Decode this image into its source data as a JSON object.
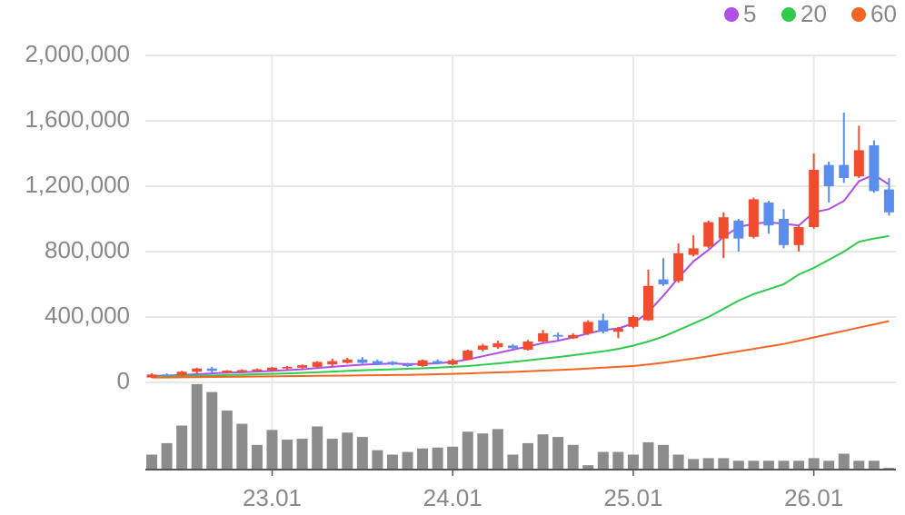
{
  "chart_data": {
    "type": "candlestick",
    "categories": [
      null,
      null,
      null,
      null,
      null,
      null,
      null,
      null,
      "23.01",
      null,
      null,
      null,
      null,
      null,
      null,
      null,
      null,
      null,
      null,
      null,
      "24.01",
      null,
      null,
      null,
      null,
      null,
      null,
      null,
      null,
      null,
      null,
      null,
      "25.01",
      null,
      null,
      null,
      null,
      null,
      null,
      null,
      null,
      null,
      null,
      null,
      "26.01",
      null,
      null,
      null,
      null,
      null
    ],
    "open": [
      30000,
      48000,
      42000,
      65000,
      85000,
      60000,
      65000,
      70000,
      75000,
      85000,
      90000,
      95000,
      110000,
      120000,
      140000,
      130000,
      125000,
      110000,
      100000,
      130000,
      110000,
      140000,
      200000,
      215000,
      225000,
      200000,
      250000,
      290000,
      270000,
      300000,
      380000,
      310000,
      340000,
      380000,
      630000,
      620000,
      780000,
      830000,
      880000,
      990000,
      890000,
      1100000,
      1000000,
      840000,
      950000,
      1330000,
      1330000,
      1260000,
      1450000,
      1180000
    ],
    "high": [
      55000,
      55000,
      70000,
      90000,
      95000,
      75000,
      80000,
      85000,
      95000,
      100000,
      110000,
      130000,
      145000,
      150000,
      155000,
      140000,
      130000,
      120000,
      140000,
      140000,
      145000,
      200000,
      235000,
      255000,
      235000,
      260000,
      320000,
      305000,
      300000,
      380000,
      420000,
      340000,
      410000,
      690000,
      760000,
      850000,
      900000,
      990000,
      1040000,
      1000000,
      1130000,
      1110000,
      1060000,
      960000,
      1400000,
      1350000,
      1650000,
      1570000,
      1480000,
      1250000
    ],
    "low": [
      28000,
      38000,
      40000,
      55000,
      60000,
      55000,
      60000,
      65000,
      70000,
      80000,
      85000,
      90000,
      100000,
      115000,
      115000,
      105000,
      105000,
      95000,
      95000,
      110000,
      105000,
      135000,
      190000,
      205000,
      200000,
      195000,
      245000,
      260000,
      265000,
      290000,
      300000,
      270000,
      330000,
      375000,
      590000,
      610000,
      770000,
      820000,
      760000,
      800000,
      880000,
      910000,
      820000,
      800000,
      940000,
      1100000,
      1220000,
      1250000,
      1160000,
      1020000
    ],
    "close": [
      48000,
      42000,
      65000,
      85000,
      70000,
      72000,
      75000,
      80000,
      90000,
      95000,
      105000,
      125000,
      130000,
      140000,
      120000,
      110000,
      110000,
      100000,
      135000,
      115000,
      135000,
      195000,
      225000,
      240000,
      210000,
      250000,
      300000,
      280000,
      290000,
      370000,
      310000,
      330000,
      400000,
      590000,
      600000,
      790000,
      820000,
      980000,
      1010000,
      880000,
      1120000,
      960000,
      840000,
      950000,
      1300000,
      1200000,
      1250000,
      1420000,
      1170000,
      1040000
    ],
    "up_color": "#f04c2f",
    "down_color": "#5b8def",
    "series": [
      {
        "name": "5",
        "color": "#b04ee8",
        "values": [
          40000,
          42000,
          45000,
          50000,
          55000,
          60000,
          62000,
          66000,
          70000,
          75000,
          80000,
          88000,
          95000,
          102000,
          108000,
          112000,
          115000,
          112000,
          113000,
          117000,
          125000,
          140000,
          160000,
          180000,
          200000,
          220000,
          240000,
          255000,
          275000,
          300000,
          320000,
          330000,
          360000,
          430000,
          530000,
          640000,
          740000,
          810000,
          890000,
          950000,
          970000,
          980000,
          970000,
          960000,
          1040000,
          1060000,
          1110000,
          1230000,
          1270000,
          1210000
        ]
      },
      {
        "name": "20",
        "color": "#2ecc4a",
        "values": [
          35000,
          36000,
          38000,
          40000,
          42000,
          45000,
          47000,
          50000,
          52000,
          55000,
          58000,
          62000,
          66000,
          70000,
          74000,
          77000,
          80000,
          83000,
          86000,
          90000,
          95000,
          100000,
          108000,
          116000,
          125000,
          135000,
          145000,
          155000,
          166000,
          178000,
          190000,
          205000,
          225000,
          250000,
          280000,
          320000,
          360000,
          400000,
          450000,
          500000,
          540000,
          570000,
          600000,
          660000,
          700000,
          750000,
          800000,
          860000,
          880000,
          895000
        ]
      },
      {
        "name": "60",
        "color": "#f46524",
        "values": [
          30000,
          30000,
          31000,
          32000,
          33000,
          34000,
          35000,
          36000,
          37000,
          38000,
          39000,
          40000,
          41000,
          42000,
          43000,
          44000,
          45000,
          46000,
          48000,
          50000,
          52000,
          55000,
          58000,
          61000,
          64000,
          68000,
          72000,
          76000,
          80000,
          85000,
          90000,
          95000,
          100000,
          110000,
          120000,
          133000,
          146000,
          160000,
          175000,
          190000,
          205000,
          220000,
          235000,
          255000,
          275000,
          295000,
          315000,
          335000,
          355000,
          375000
        ]
      }
    ],
    "volume": {
      "color": "#8c8c8c",
      "values": [
        17,
        30,
        50,
        97,
        88,
        67,
        52,
        28,
        45,
        34,
        35,
        49,
        35,
        42,
        37,
        22,
        17,
        20,
        24,
        25,
        26,
        43,
        41,
        46,
        17,
        30,
        40,
        37,
        28,
        5,
        20,
        20,
        17,
        31,
        28,
        17,
        12,
        13,
        13,
        10,
        10,
        10,
        10,
        10,
        13,
        10,
        18,
        10,
        10,
        2
      ]
    },
    "ylim": [
      0,
      2000000
    ],
    "yticks": [
      0,
      {
        "value": 400000,
        "label": "400,000"
      },
      {
        "value": 800000,
        "label": "800,000"
      },
      {
        "value": 1200000,
        "label": "1,200,000"
      },
      {
        "value": 1600000,
        "label": "1,600,000"
      },
      {
        "value": 2000000,
        "label": "2,000,000"
      }
    ],
    "grid": true
  }
}
